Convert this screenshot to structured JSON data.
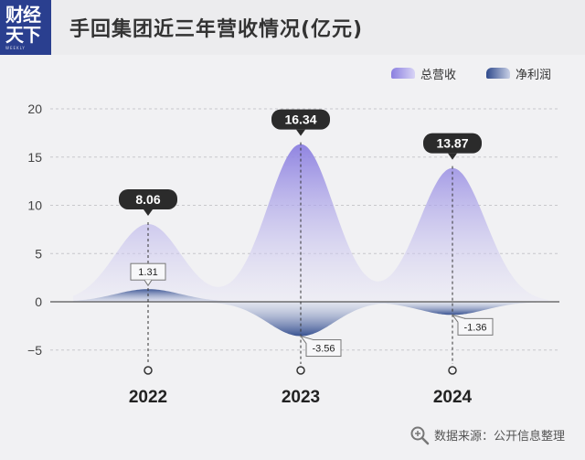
{
  "header": {
    "logo_line1": "财经",
    "logo_line2": "天下",
    "logo_line3": "WEEKLY",
    "title": "手回集团近三年营收情况(亿元)"
  },
  "legend": {
    "revenue_label": "总营收",
    "profit_label": "净利润"
  },
  "source": "数据来源：公开信息整理",
  "colors": {
    "revenue": "#8b7fe0",
    "profit": "#2f4a8c",
    "logo": "#2a3f8f"
  },
  "chart_data": {
    "type": "area",
    "categories": [
      "2022",
      "2023",
      "2024"
    ],
    "series": [
      {
        "name": "总营收",
        "values": [
          8.06,
          16.34,
          13.87
        ]
      },
      {
        "name": "净利润",
        "values": [
          1.31,
          -3.56,
          -1.36
        ]
      }
    ],
    "ylim": [
      -7,
      20
    ],
    "yticks": [
      20,
      15,
      10,
      5,
      0,
      -5
    ],
    "grid": true,
    "legend_position": "top-right"
  }
}
